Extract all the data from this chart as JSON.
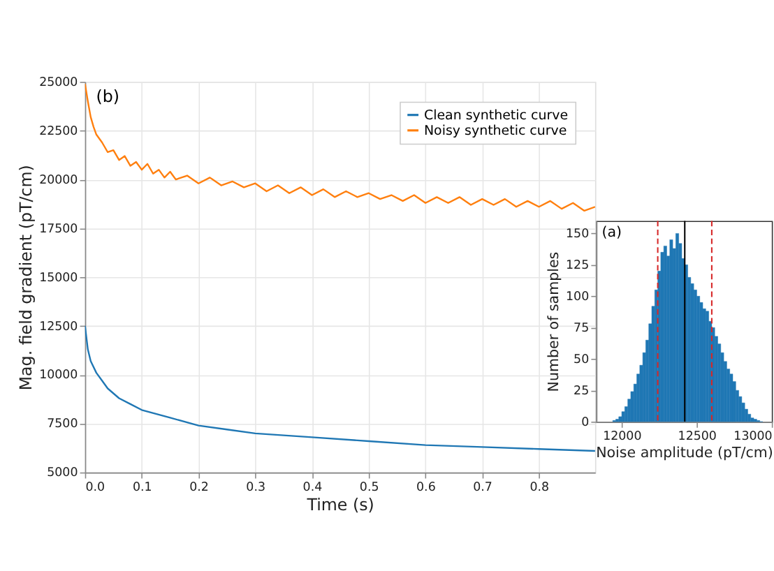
{
  "chart_data": [
    {
      "type": "line",
      "xlabel": "Time (s)",
      "ylabel": "Mag. field gradient (pT/cm)",
      "annotations": [
        "(b)"
      ],
      "xlim": [
        0,
        0.899
      ],
      "xticks": [
        {
          "value": 0,
          "label": "0.0"
        },
        0.1,
        0.2,
        0.3,
        0.4,
        0.5,
        0.6,
        0.7,
        0.8
      ],
      "ylim": [
        5000,
        25000
      ],
      "yticks": [
        5000,
        7500,
        10000,
        12500,
        15000,
        17500,
        20000,
        22500,
        25000
      ],
      "grid": true,
      "legend": "top right",
      "series": [
        {
          "name": "Clean synthetic curve",
          "color": "#1f77b4",
          "x": [
            0,
            0.005,
            0.01,
            0.02,
            0.03,
            0.04,
            0.06,
            0.08,
            0.1,
            0.15,
            0.2,
            0.25,
            0.3,
            0.4,
            0.5,
            0.6,
            0.7,
            0.8,
            0.899
          ],
          "values": [
            12500,
            11300,
            10700,
            10100,
            9700,
            9300,
            8800,
            8500,
            8200,
            7800,
            7400,
            7200,
            7000,
            6800,
            6600,
            6400,
            6300,
            6200,
            6100
          ]
        },
        {
          "name": "Noisy synthetic curve",
          "color": "#ff7f0e",
          "x": [
            0,
            0.005,
            0.01,
            0.015,
            0.02,
            0.03,
            0.04,
            0.05,
            0.06,
            0.07,
            0.08,
            0.09,
            0.1,
            0.11,
            0.12,
            0.13,
            0.14,
            0.15,
            0.16,
            0.18,
            0.2,
            0.22,
            0.24,
            0.26,
            0.28,
            0.3,
            0.32,
            0.34,
            0.36,
            0.38,
            0.4,
            0.42,
            0.44,
            0.46,
            0.48,
            0.5,
            0.52,
            0.54,
            0.56,
            0.58,
            0.6,
            0.62,
            0.64,
            0.66,
            0.68,
            0.7,
            0.72,
            0.74,
            0.76,
            0.78,
            0.8,
            0.82,
            0.84,
            0.86,
            0.88,
            0.899
          ],
          "values": [
            24900,
            24000,
            23200,
            22700,
            22300,
            21900,
            21400,
            21500,
            21000,
            21200,
            20700,
            20900,
            20500,
            20800,
            20300,
            20500,
            20100,
            20400,
            20000,
            20200,
            19800,
            20100,
            19700,
            19900,
            19600,
            19800,
            19400,
            19700,
            19300,
            19600,
            19200,
            19500,
            19100,
            19400,
            19100,
            19300,
            19000,
            19200,
            18900,
            19200,
            18800,
            19100,
            18800,
            19100,
            18700,
            19000,
            18700,
            19000,
            18600,
            18900,
            18600,
            18900,
            18500,
            18800,
            18400,
            18600
          ]
        }
      ]
    },
    {
      "type": "histogram",
      "xlabel": "Noise amplitude (pT/cm)",
      "ylabel": "Number of samples",
      "annotations": [
        "(a)"
      ],
      "xlim": [
        11830,
        13000
      ],
      "xticks": [
        12000,
        12500,
        13000
      ],
      "ylim": [
        0,
        160
      ],
      "yticks": [
        0,
        25,
        50,
        75,
        100,
        125,
        150
      ],
      "color": "#1f77b4",
      "bins": [
        11940,
        11960,
        11980,
        12000,
        12020,
        12040,
        12060,
        12080,
        12100,
        12120,
        12140,
        12160,
        12180,
        12200,
        12220,
        12240,
        12260,
        12280,
        12300,
        12320,
        12340,
        12360,
        12380,
        12400,
        12420,
        12440,
        12460,
        12480,
        12500,
        12520,
        12540,
        12560,
        12580,
        12600,
        12620,
        12640,
        12660,
        12680,
        12700,
        12720,
        12740,
        12760,
        12780,
        12800,
        12820,
        12840,
        12860,
        12880,
        12900,
        12920,
        12940
      ],
      "values": [
        1,
        2,
        4,
        8,
        12,
        18,
        24,
        30,
        38,
        45,
        55,
        65,
        78,
        92,
        105,
        120,
        135,
        140,
        132,
        145,
        138,
        150,
        142,
        130,
        125,
        115,
        110,
        105,
        100,
        95,
        90,
        88,
        80,
        75,
        68,
        62,
        55,
        48,
        42,
        38,
        32,
        25,
        20,
        15,
        10,
        6,
        3,
        2,
        1,
        0
      ],
      "ref_lines": [
        {
          "axis": "x",
          "value": 12240,
          "color": "#d62728",
          "line_style": "dashed"
        },
        {
          "axis": "x",
          "value": 12420,
          "color": "#000000",
          "line_style": "solid"
        },
        {
          "axis": "x",
          "value": 12600,
          "color": "#d62728",
          "line_style": "dashed"
        }
      ]
    }
  ]
}
